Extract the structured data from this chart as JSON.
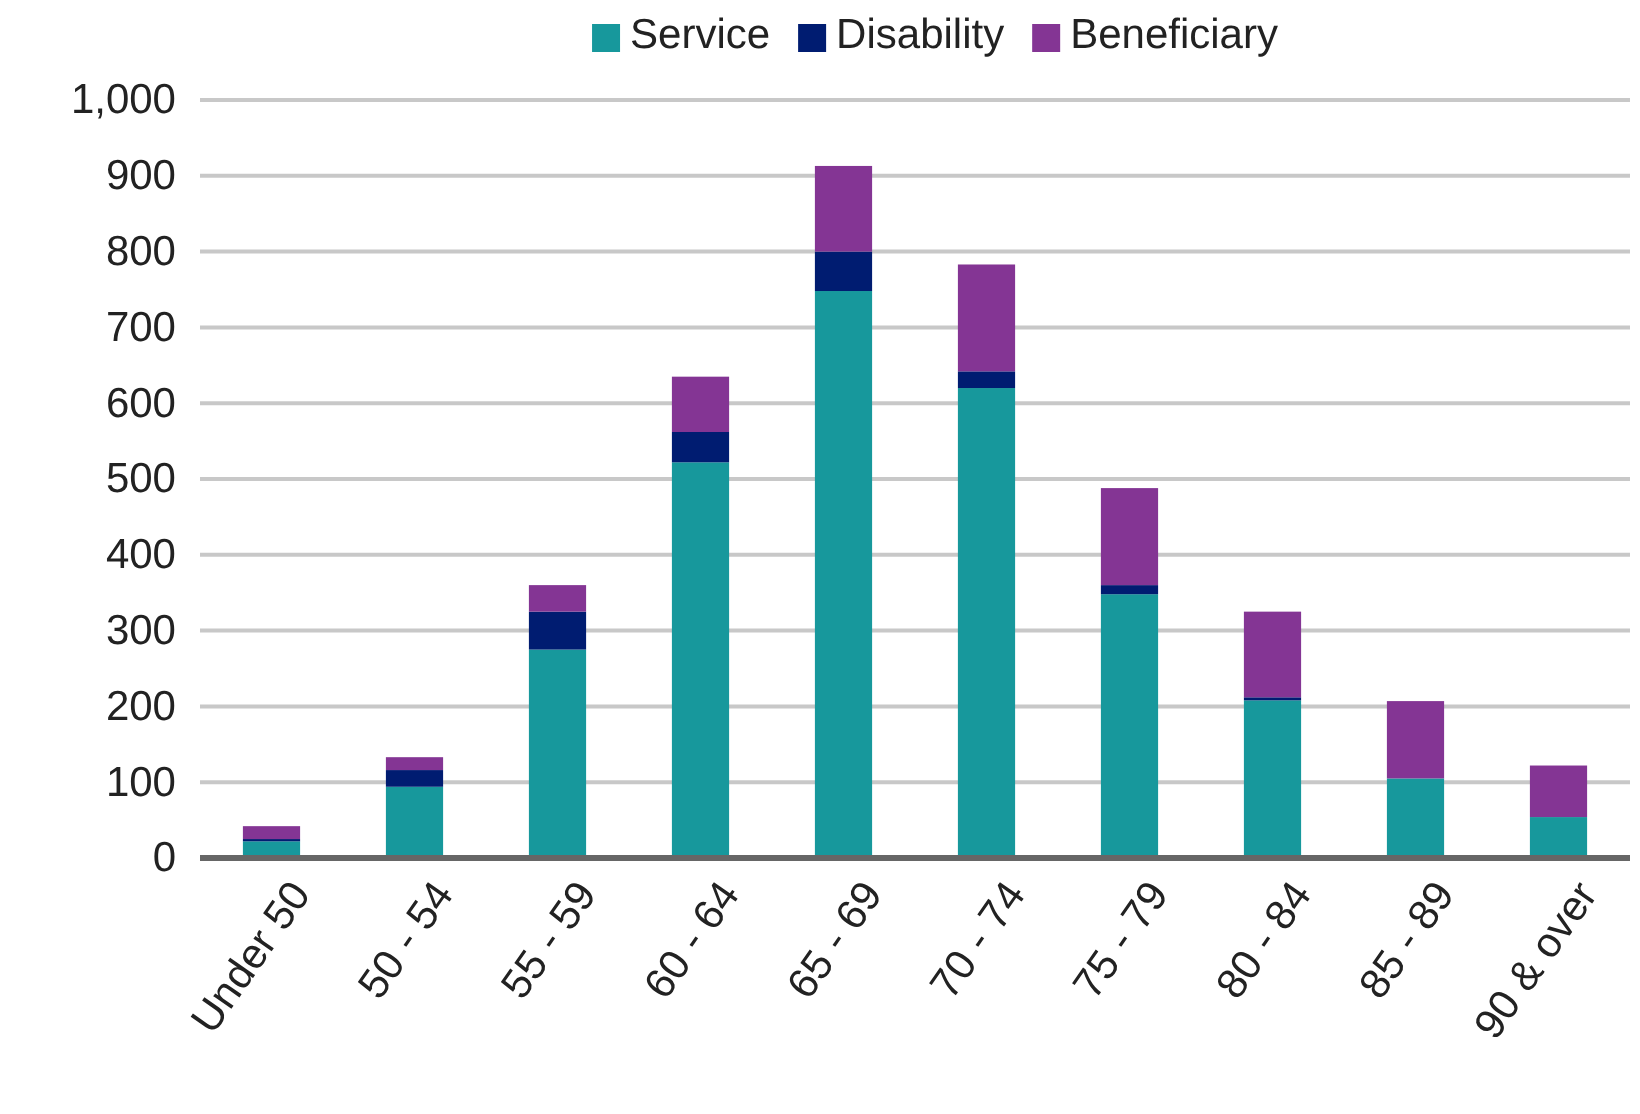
{
  "chart_data": {
    "type": "bar",
    "stacked": true,
    "categories": [
      "Under 50",
      "50 - 54",
      "55 - 59",
      "60 - 64",
      "65 - 69",
      "70 - 74",
      "75 - 79",
      "80 - 84",
      "85 - 89",
      "90 & over"
    ],
    "series": [
      {
        "name": "Service",
        "color": "#17989c",
        "values": [
          22,
          94,
          275,
          522,
          748,
          620,
          348,
          208,
          105,
          54
        ]
      },
      {
        "name": "Disability",
        "color": "#001c71",
        "values": [
          3,
          22,
          50,
          40,
          52,
          22,
          12,
          4,
          0,
          0
        ]
      },
      {
        "name": "Beneficiary",
        "color": "#843594",
        "values": [
          17,
          17,
          35,
          73,
          113,
          141,
          128,
          113,
          102,
          68
        ]
      }
    ],
    "ylim": [
      0,
      1000
    ],
    "yticks": [
      0,
      {
        "value": 100,
        "label": "100"
      },
      200,
      300,
      400,
      500,
      600,
      700,
      800,
      900,
      {
        "value": 1000,
        "label": "1,000"
      }
    ],
    "grid": "y",
    "legend": "top"
  }
}
